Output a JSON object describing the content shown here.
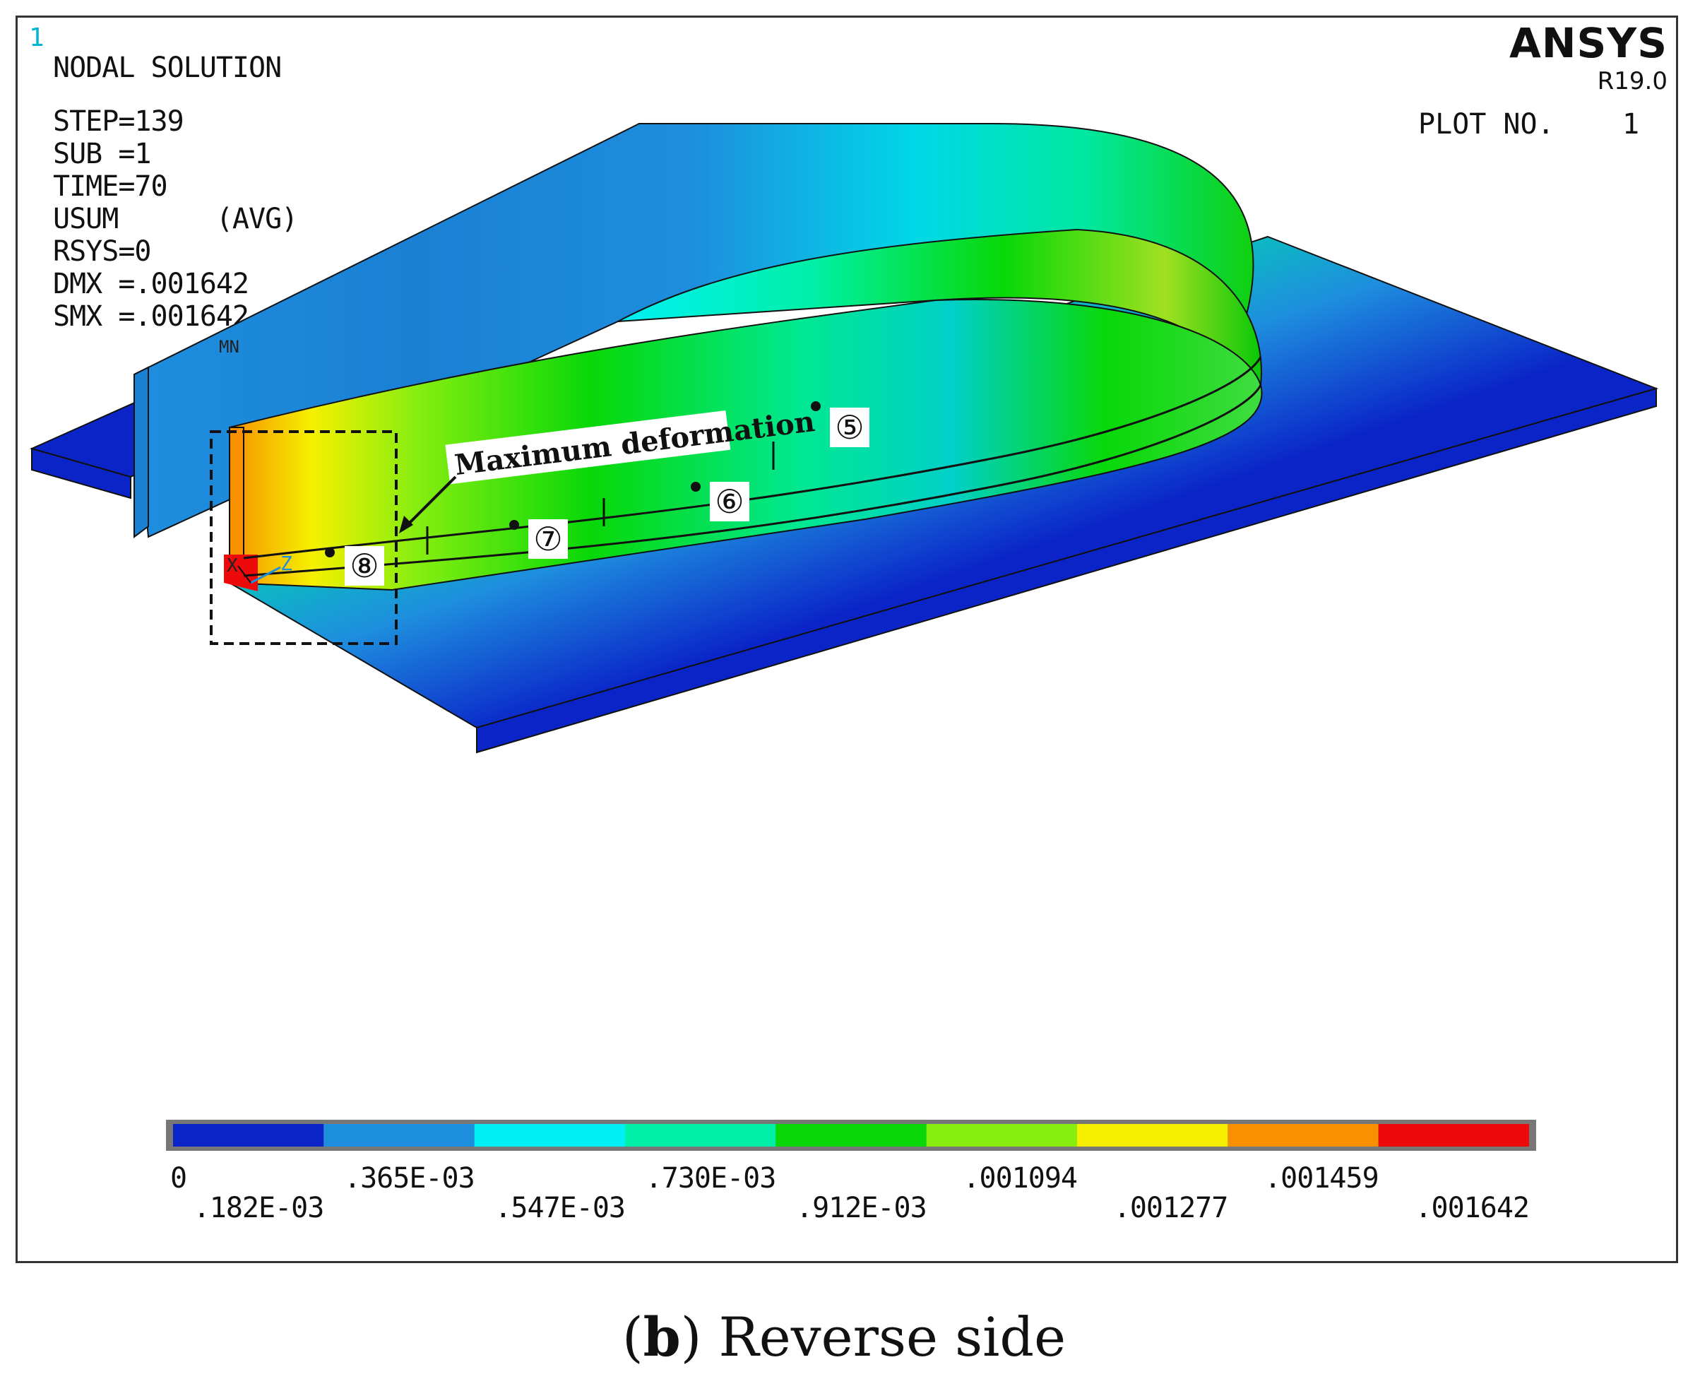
{
  "window_number": "1",
  "header": {
    "brand": "ANSYS",
    "version": "R19.0",
    "plot_no_label": "PLOT NO.",
    "plot_no_value": "1"
  },
  "solution_info": [
    "NODAL SOLUTION",
    "STEP=139",
    "SUB =1",
    "TIME=70",
    "USUM      (AVG)",
    "RSYS=0",
    "DMX =.001642",
    "SMX =.001642"
  ],
  "model": {
    "min_label": "MN",
    "max_label": "MX",
    "axis_labels": {
      "x": "X",
      "z": "Z"
    },
    "annotation": "Maximum deformation",
    "points": [
      "⑤",
      "⑥",
      "⑦",
      "⑧"
    ]
  },
  "legend": {
    "colors": [
      "#0a24c8",
      "#1e8ede",
      "#00f0f5",
      "#00f0a8",
      "#08d808",
      "#88ee10",
      "#f6f000",
      "#f89000",
      "#ee0a0a"
    ],
    "labels": [
      "0",
      ".182E-03",
      ".365E-03",
      ".547E-03",
      ".730E-03",
      ".912E-03",
      ".001094",
      ".001277",
      ".001459",
      ".001642"
    ]
  },
  "caption": {
    "bold": "b",
    "text": "Reverse side"
  }
}
